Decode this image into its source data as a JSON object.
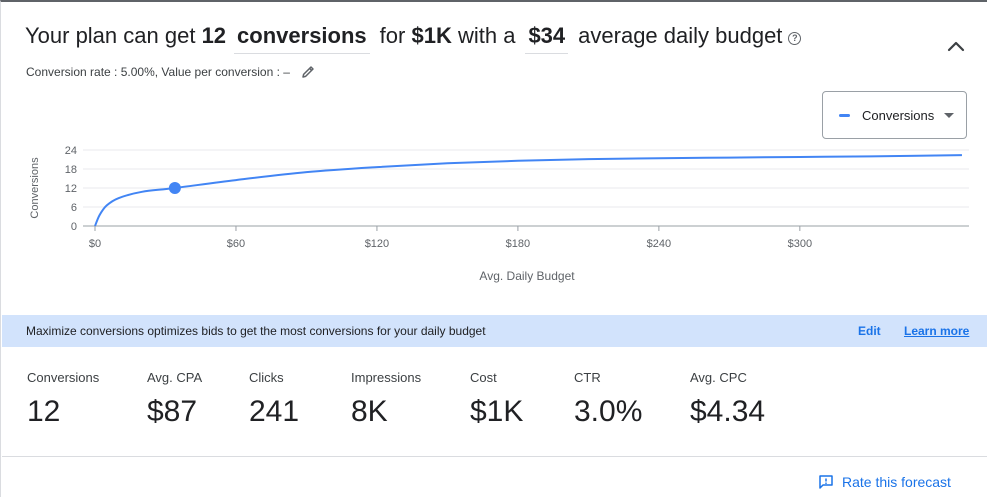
{
  "headline": {
    "prefix": "Your plan can get",
    "conversions_count": "12",
    "metric": "conversions",
    "for_text": "for",
    "cost": "$1K",
    "with_text": "with a",
    "budget": "$34",
    "suffix": "average daily budget"
  },
  "subline": {
    "text": "Conversion rate : 5.00%, Value per conversion : –"
  },
  "metric_select": {
    "selected": "Conversions"
  },
  "chart_data": {
    "type": "line",
    "ylabel": "Conversions",
    "xlabel": "Avg. Daily Budget",
    "y_ticks": [
      "24",
      "18",
      "12",
      "6",
      "0"
    ],
    "x_ticks": [
      "$0",
      "$60",
      "$120",
      "$180",
      "$240",
      "$300"
    ],
    "ylim": [
      0,
      24
    ],
    "xlim": [
      0,
      372
    ],
    "grid": true,
    "series": [
      {
        "name": "Conversions",
        "x": [
          0,
          2,
          5,
          10,
          20,
          34,
          60,
          90,
          120,
          150,
          180,
          210,
          240,
          270,
          300,
          330,
          369
        ],
        "y": [
          0,
          3.5,
          6.5,
          8.8,
          10.8,
          12,
          14.5,
          17,
          18.6,
          19.8,
          20.6,
          21.1,
          21.4,
          21.6,
          21.8,
          22,
          22.4
        ]
      }
    ],
    "highlight_point": {
      "x": 34,
      "y": 12
    },
    "color": "#4285f4"
  },
  "banner": {
    "message": "Maximize conversions optimizes bids to get the most conversions for your daily budget",
    "edit": "Edit",
    "learn_more": "Learn more"
  },
  "stats": [
    {
      "label": "Conversions",
      "value": "12"
    },
    {
      "label": "Avg. CPA",
      "value": "$87"
    },
    {
      "label": "Clicks",
      "value": "241"
    },
    {
      "label": "Impressions",
      "value": "8K"
    },
    {
      "label": "Cost",
      "value": "$1K"
    },
    {
      "label": "CTR",
      "value": "3.0%"
    },
    {
      "label": "Avg. CPC",
      "value": "$4.34"
    }
  ],
  "rate_forecast": "Rate this forecast",
  "colors": {
    "accent": "#1a73e8",
    "series": "#4285f4",
    "banner_bg": "#d2e3fc"
  }
}
